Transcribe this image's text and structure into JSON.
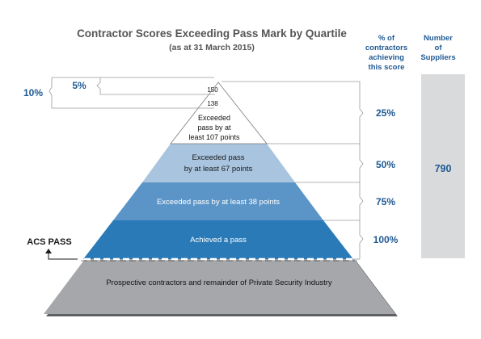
{
  "header": {
    "title": "Contractor Scores Exceeding Pass Mark by Quartile",
    "subtitle": "(as at 31 March 2015)"
  },
  "columns": {
    "pct_header": [
      "% of",
      "contractors",
      "achieving",
      "this score"
    ],
    "suppliers_header": [
      "Number",
      "of",
      "Suppliers"
    ],
    "suppliers_value": "790"
  },
  "left": {
    "outer_pct": "10%",
    "inner_pct": "5%",
    "acs_pass": "ACS PASS"
  },
  "tiers": {
    "top_score": "150",
    "second_score": "138",
    "t107": [
      "Exceeded",
      "pass by at",
      "least 107 points"
    ],
    "t67": [
      "Exceeded pass",
      "by at least 67 points"
    ],
    "t38": "Exceeded pass by at least 38 points",
    "pass": "Achieved a pass",
    "base": "Prospective contractors and remainder of Private Security Industry"
  },
  "percentages": [
    "25%",
    "50%",
    "75%",
    "100%"
  ],
  "colors": {
    "accent_blue": "#1f5a93",
    "tier_light": "#a9c4df",
    "tier_mid": "#5b95c8",
    "tier_dark": "#2a7ab8",
    "base_grey": "#a6a7aa",
    "panel_grey": "#d9dadb",
    "title_grey": "#555555"
  }
}
